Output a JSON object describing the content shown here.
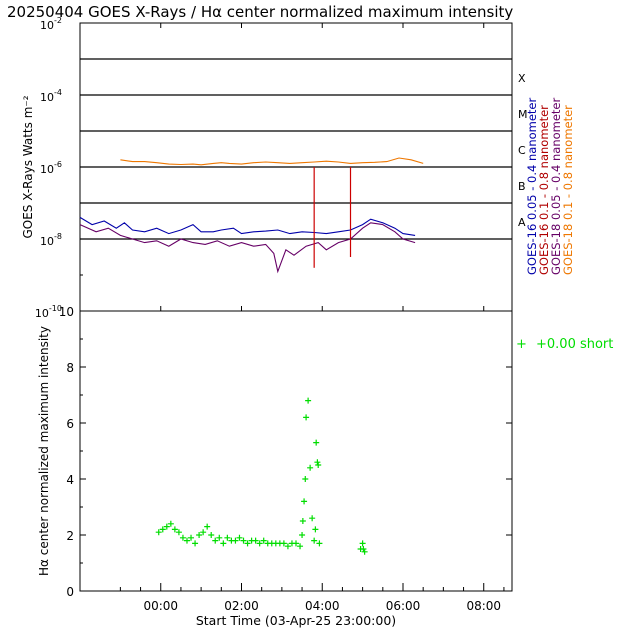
{
  "title": "20250404 GOES X-Rays / Hα center normalized maximum intensity",
  "colors": {
    "axis": "#000000",
    "goes16_long": "#0000aa",
    "goes16_short": "#b00000",
    "goes18_long": "#660066",
    "goes18_short": "#ee7700",
    "halpha": "#00dd00",
    "spike": "#cc0000"
  },
  "chart_data": [
    {
      "type": "line",
      "title": "20250404 GOES X-Rays / Hα center normalized maximum intensity",
      "ylabel": "GOES X-Rays Watts m⁻²",
      "yscale": "log",
      "ylim_exp": [
        -10,
        -2
      ],
      "y_ticks": [
        {
          "exp": -2,
          "base": "10",
          "sup": "-2"
        },
        {
          "exp": -4,
          "base": "10",
          "sup": "-4"
        },
        {
          "exp": -6,
          "base": "10",
          "sup": "-6"
        },
        {
          "exp": -8,
          "base": "10",
          "sup": "-8"
        },
        {
          "exp": -10,
          "base": "10",
          "sup": "-10"
        }
      ],
      "flare_lines_exp": [
        -3,
        -4,
        -5,
        -6,
        -7,
        -8
      ],
      "flare_classes": [
        {
          "label": "X",
          "exp": -4
        },
        {
          "label": "M",
          "exp": -5
        },
        {
          "label": "C",
          "exp": -6
        },
        {
          "label": "B",
          "exp": -7
        },
        {
          "label": "A",
          "exp": -8
        }
      ],
      "legend": [
        {
          "label": "GOES-16  0.05 - 0.4 nanometer",
          "color": "#0000aa"
        },
        {
          "label": "GOES-16  0.1 - 0.8 nanometer",
          "color": "#b00000"
        },
        {
          "label": "GOES-18  0.05 - 0.4 nanometer",
          "color": "#660066"
        },
        {
          "label": "GOES-18  0.1 - 0.8 nanometer",
          "color": "#ee7700"
        }
      ],
      "x_unit": "hours since 03-Apr-25 23:00",
      "xlim": [
        -1.0,
        9.7
      ],
      "series": [
        {
          "name": "GOES-18 0.1 - 0.8 nanometer",
          "color": "#ee7700",
          "x": [
            0.0,
            0.3,
            0.6,
            0.9,
            1.2,
            1.5,
            1.8,
            2.0,
            2.3,
            2.5,
            2.7,
            3.0,
            3.3,
            3.6,
            3.9,
            4.2,
            4.5,
            4.8,
            5.1,
            5.4,
            5.7,
            6.0,
            6.3,
            6.6,
            6.9,
            7.2,
            7.5
          ],
          "y_exp": [
            -5.8,
            -5.85,
            -5.85,
            -5.88,
            -5.92,
            -5.93,
            -5.92,
            -5.94,
            -5.9,
            -5.88,
            -5.9,
            -5.92,
            -5.88,
            -5.86,
            -5.88,
            -5.9,
            -5.88,
            -5.86,
            -5.84,
            -5.86,
            -5.9,
            -5.88,
            -5.87,
            -5.85,
            -5.75,
            -5.8,
            -5.9
          ]
        },
        {
          "name": "GOES-16 0.05 - 0.4 nanometer",
          "color": "#0000aa",
          "x": [
            -1.0,
            -0.7,
            -0.4,
            -0.1,
            0.1,
            0.3,
            0.6,
            0.9,
            1.2,
            1.5,
            1.8,
            2.0,
            2.3,
            2.5,
            2.8,
            3.0,
            3.3,
            3.6,
            3.9,
            4.2,
            4.5,
            4.8,
            5.1,
            5.4,
            5.7,
            6.0,
            6.2,
            6.5,
            6.8,
            7.0,
            7.3
          ],
          "y_exp": [
            -7.4,
            -7.6,
            -7.5,
            -7.7,
            -7.55,
            -7.75,
            -7.8,
            -7.7,
            -7.85,
            -7.75,
            -7.6,
            -7.8,
            -7.8,
            -7.75,
            -7.7,
            -7.85,
            -7.8,
            -7.78,
            -7.75,
            -7.85,
            -7.8,
            -7.82,
            -7.85,
            -7.8,
            -7.75,
            -7.6,
            -7.45,
            -7.55,
            -7.7,
            -7.85,
            -7.9
          ]
        },
        {
          "name": "GOES-18 0.05 - 0.4 nanometer",
          "color": "#660066",
          "x": [
            -1.0,
            -0.6,
            -0.3,
            0.0,
            0.3,
            0.6,
            0.9,
            1.2,
            1.5,
            1.8,
            2.1,
            2.4,
            2.7,
            3.0,
            3.3,
            3.6,
            3.8,
            3.9,
            4.1,
            4.3,
            4.6,
            4.9,
            5.1,
            5.4,
            5.7,
            6.0,
            6.2,
            6.5,
            6.8,
            7.0,
            7.3
          ],
          "y_exp": [
            -7.6,
            -7.8,
            -7.7,
            -7.9,
            -8.0,
            -8.1,
            -8.05,
            -8.2,
            -8.0,
            -8.1,
            -8.15,
            -8.05,
            -8.2,
            -8.1,
            -8.2,
            -8.15,
            -8.4,
            -8.9,
            -8.3,
            -8.45,
            -8.2,
            -8.1,
            -8.3,
            -8.1,
            -8.0,
            -7.7,
            -7.55,
            -7.6,
            -7.8,
            -8.0,
            -8.1
          ]
        }
      ],
      "spikes": [
        {
          "x": 4.8,
          "y_exp_top": -6.0,
          "y_exp_bottom": -8.8
        },
        {
          "x": 5.7,
          "y_exp_top": -6.0,
          "y_exp_bottom": -8.5
        }
      ]
    },
    {
      "type": "scatter",
      "ylabel": "Hα center normalized maximum intensity",
      "xlabel": "Start Time (03-Apr-25 23:00:00)",
      "ylim": [
        0,
        10
      ],
      "y_ticks": [
        "0",
        "2",
        "4",
        "6",
        "8",
        "10"
      ],
      "xlim": [
        -1.0,
        9.7
      ],
      "x_ticks": [
        {
          "label": "00:00",
          "x": 1.0
        },
        {
          "label": "02:00",
          "x": 3.0
        },
        {
          "label": "04:00",
          "x": 5.0
        },
        {
          "label": "06:00",
          "x": 7.0
        },
        {
          "label": "08:00",
          "x": 9.0
        }
      ],
      "legend": [
        {
          "marker": "+",
          "label": "+0.00 short",
          "color": "#00dd00"
        }
      ],
      "x": [
        0.95,
        1.05,
        1.15,
        1.25,
        1.35,
        1.45,
        1.55,
        1.65,
        1.75,
        1.85,
        1.95,
        2.05,
        2.15,
        2.25,
        2.35,
        2.45,
        2.55,
        2.65,
        2.75,
        2.85,
        2.95,
        3.05,
        3.15,
        3.25,
        3.35,
        3.45,
        3.55,
        3.65,
        3.75,
        3.85,
        3.95,
        4.05,
        4.15,
        4.25,
        4.35,
        4.45,
        4.5,
        4.52,
        4.55,
        4.58,
        4.6,
        4.65,
        4.7,
        4.75,
        4.8,
        4.83,
        4.85,
        4.88,
        4.9,
        4.93,
        5.95,
        6.0,
        6.02,
        6.05
      ],
      "y": [
        2.1,
        2.2,
        2.3,
        2.4,
        2.2,
        2.1,
        1.9,
        1.8,
        1.9,
        1.7,
        2.0,
        2.1,
        2.3,
        2.0,
        1.8,
        1.9,
        1.7,
        1.9,
        1.8,
        1.8,
        1.9,
        1.8,
        1.7,
        1.8,
        1.8,
        1.7,
        1.8,
        1.7,
        1.7,
        1.7,
        1.7,
        1.7,
        1.6,
        1.7,
        1.7,
        1.6,
        2.0,
        2.5,
        3.2,
        4.0,
        6.2,
        6.8,
        4.4,
        2.6,
        1.8,
        2.2,
        5.3,
        4.6,
        4.5,
        1.7,
        1.5,
        1.7,
        1.5,
        1.4
      ]
    }
  ]
}
